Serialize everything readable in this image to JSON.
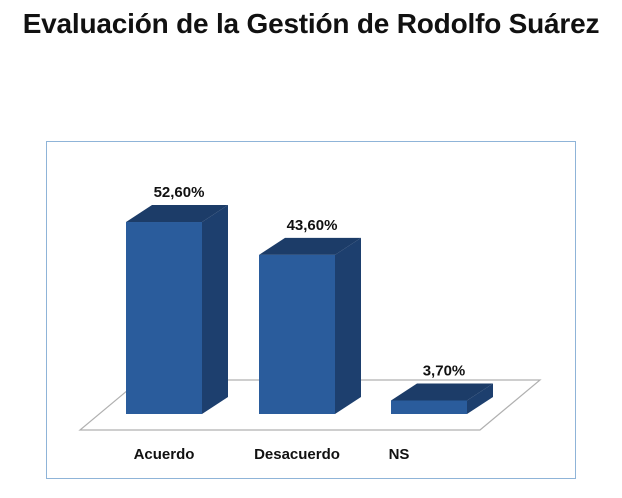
{
  "chart_data": {
    "type": "bar",
    "title": "Evaluación de la Gestión de Rodolfo Suárez",
    "categories": [
      "Acuerdo",
      "Desacuerdo",
      "NS"
    ],
    "values": [
      52.6,
      43.6,
      3.7
    ],
    "value_labels": [
      "52,60%",
      "43,60%",
      "3,70%"
    ],
    "ylim": [
      0,
      60
    ],
    "grid": false,
    "legend": "none",
    "style": "3d-column",
    "colors": {
      "front": "#2a5c9c",
      "side": "#1d3f6e",
      "top": "#1c3c68",
      "floor_stroke": "#b0b0b0",
      "frame": "#8fb4d8"
    }
  }
}
